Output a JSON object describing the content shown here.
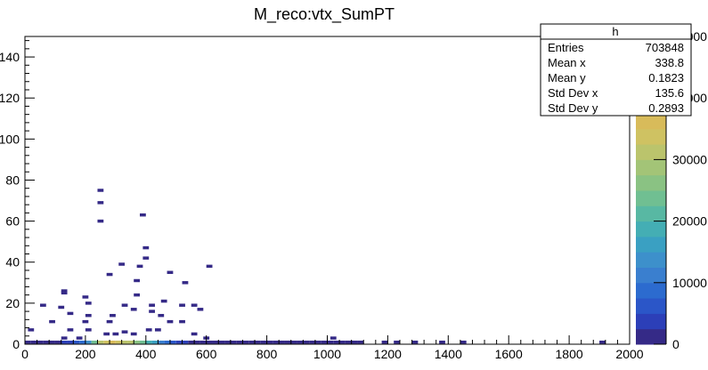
{
  "chart_data": {
    "type": "heatmap",
    "title": "M_reco:vtx_SumPT",
    "xlabel": "",
    "ylabel": "",
    "xlim": [
      0,
      2000
    ],
    "ylim": [
      0,
      150
    ],
    "x_ticks": [
      "0",
      "200",
      "400",
      "600",
      "800",
      "1000",
      "1200",
      "1400",
      "1600",
      "1800",
      "2000"
    ],
    "y_ticks": [
      "0",
      "20",
      "40",
      "60",
      "80",
      "100",
      "120",
      "140"
    ],
    "z_ticks": [
      "0",
      "10000",
      "20000",
      "30000",
      "40000",
      "50000"
    ],
    "zlim": [
      0,
      50000
    ],
    "bin_width": [
      20,
      1.5
    ],
    "cells": [
      {
        "x": 250,
        "y": 75,
        "z": 3
      },
      {
        "x": 250,
        "y": 69,
        "z": 3
      },
      {
        "x": 250,
        "y": 60,
        "z": 3
      },
      {
        "x": 390,
        "y": 63,
        "z": 3
      },
      {
        "x": 400,
        "y": 47,
        "z": 3
      },
      {
        "x": 400,
        "y": 42,
        "z": 3
      },
      {
        "x": 320,
        "y": 39,
        "z": 3
      },
      {
        "x": 380,
        "y": 38,
        "z": 3
      },
      {
        "x": 610,
        "y": 38,
        "z": 3
      },
      {
        "x": 280,
        "y": 34,
        "z": 3
      },
      {
        "x": 480,
        "y": 35,
        "z": 3
      },
      {
        "x": 530,
        "y": 30,
        "z": 3
      },
      {
        "x": 370,
        "y": 31,
        "z": 3
      },
      {
        "x": 130,
        "y": 26,
        "z": 3
      },
      {
        "x": 130,
        "y": 25,
        "z": 3
      },
      {
        "x": 370,
        "y": 24,
        "z": 3
      },
      {
        "x": 200,
        "y": 23,
        "z": 3
      },
      {
        "x": 210,
        "y": 20,
        "z": 3
      },
      {
        "x": 460,
        "y": 21,
        "z": 3
      },
      {
        "x": 520,
        "y": 19,
        "z": 3
      },
      {
        "x": 560,
        "y": 19,
        "z": 3
      },
      {
        "x": 60,
        "y": 19,
        "z": 3
      },
      {
        "x": 120,
        "y": 18,
        "z": 3
      },
      {
        "x": 330,
        "y": 19,
        "z": 3
      },
      {
        "x": 420,
        "y": 19,
        "z": 3
      },
      {
        "x": 360,
        "y": 17,
        "z": 3
      },
      {
        "x": 420,
        "y": 16,
        "z": 3
      },
      {
        "x": 580,
        "y": 17,
        "z": 3
      },
      {
        "x": 150,
        "y": 15,
        "z": 3
      },
      {
        "x": 210,
        "y": 14,
        "z": 3
      },
      {
        "x": 290,
        "y": 14,
        "z": 3
      },
      {
        "x": 450,
        "y": 14,
        "z": 3
      },
      {
        "x": 90,
        "y": 11,
        "z": 3
      },
      {
        "x": 200,
        "y": 11,
        "z": 3
      },
      {
        "x": 280,
        "y": 11,
        "z": 3
      },
      {
        "x": 480,
        "y": 11,
        "z": 3
      },
      {
        "x": 520,
        "y": 11,
        "z": 3
      },
      {
        "x": 20,
        "y": 7,
        "z": 3
      },
      {
        "x": 150,
        "y": 7,
        "z": 3
      },
      {
        "x": 210,
        "y": 7,
        "z": 3
      },
      {
        "x": 330,
        "y": 6,
        "z": 3
      },
      {
        "x": 410,
        "y": 7,
        "z": 3
      },
      {
        "x": 440,
        "y": 7,
        "z": 3
      },
      {
        "x": 270,
        "y": 5,
        "z": 3
      },
      {
        "x": 300,
        "y": 5,
        "z": 3
      },
      {
        "x": 360,
        "y": 5,
        "z": 3
      },
      {
        "x": 560,
        "y": 5,
        "z": 3
      },
      {
        "x": 600,
        "y": 3,
        "z": 3
      },
      {
        "x": 130,
        "y": 3,
        "z": 3
      },
      {
        "x": 180,
        "y": 3,
        "z": 3
      },
      {
        "x": 1020,
        "y": 3,
        "z": 3
      },
      {
        "x": 10,
        "y": 1,
        "z": 300
      },
      {
        "x": 30,
        "y": 1,
        "z": 500
      },
      {
        "x": 50,
        "y": 1,
        "z": 800
      },
      {
        "x": 70,
        "y": 1,
        "z": 1200
      },
      {
        "x": 90,
        "y": 1,
        "z": 1800
      },
      {
        "x": 110,
        "y": 1,
        "z": 2500
      },
      {
        "x": 130,
        "y": 1,
        "z": 3500
      },
      {
        "x": 150,
        "y": 1,
        "z": 5000
      },
      {
        "x": 170,
        "y": 1,
        "z": 7000
      },
      {
        "x": 190,
        "y": 1,
        "z": 10000
      },
      {
        "x": 210,
        "y": 1,
        "z": 18000
      },
      {
        "x": 230,
        "y": 1,
        "z": 30000
      },
      {
        "x": 250,
        "y": 1,
        "z": 40000
      },
      {
        "x": 270,
        "y": 1,
        "z": 45000
      },
      {
        "x": 290,
        "y": 1,
        "z": 48000
      },
      {
        "x": 310,
        "y": 1,
        "z": 46000
      },
      {
        "x": 330,
        "y": 1,
        "z": 43000
      },
      {
        "x": 350,
        "y": 1,
        "z": 40000
      },
      {
        "x": 370,
        "y": 1,
        "z": 35000
      },
      {
        "x": 390,
        "y": 1,
        "z": 30000
      },
      {
        "x": 410,
        "y": 1,
        "z": 25000
      },
      {
        "x": 430,
        "y": 1,
        "z": 20000
      },
      {
        "x": 450,
        "y": 1,
        "z": 15000
      },
      {
        "x": 470,
        "y": 1,
        "z": 11000
      },
      {
        "x": 490,
        "y": 1,
        "z": 8000
      },
      {
        "x": 510,
        "y": 1,
        "z": 5500
      },
      {
        "x": 530,
        "y": 1,
        "z": 3800
      },
      {
        "x": 550,
        "y": 1,
        "z": 2500
      },
      {
        "x": 570,
        "y": 1,
        "z": 1500
      },
      {
        "x": 590,
        "y": 1,
        "z": 900
      },
      {
        "x": 610,
        "y": 1,
        "z": 500
      },
      {
        "x": 630,
        "y": 1,
        "z": 300
      },
      {
        "x": 650,
        "y": 1,
        "z": 150
      },
      {
        "x": 670,
        "y": 1,
        "z": 100
      },
      {
        "x": 690,
        "y": 1,
        "z": 60
      },
      {
        "x": 710,
        "y": 1,
        "z": 40
      },
      {
        "x": 730,
        "y": 1,
        "z": 30
      },
      {
        "x": 750,
        "y": 1,
        "z": 20
      },
      {
        "x": 770,
        "y": 1,
        "z": 15
      },
      {
        "x": 790,
        "y": 1,
        "z": 10
      },
      {
        "x": 810,
        "y": 1,
        "z": 8
      },
      {
        "x": 830,
        "y": 1,
        "z": 6
      },
      {
        "x": 850,
        "y": 1,
        "z": 5
      },
      {
        "x": 870,
        "y": 1,
        "z": 4
      },
      {
        "x": 890,
        "y": 1,
        "z": 3
      },
      {
        "x": 910,
        "y": 1,
        "z": 3
      },
      {
        "x": 930,
        "y": 1,
        "z": 3
      },
      {
        "x": 950,
        "y": 1,
        "z": 3
      },
      {
        "x": 970,
        "y": 1,
        "z": 3
      },
      {
        "x": 990,
        "y": 1,
        "z": 3
      },
      {
        "x": 1010,
        "y": 1,
        "z": 3
      },
      {
        "x": 1030,
        "y": 1,
        "z": 3
      },
      {
        "x": 1050,
        "y": 1,
        "z": 3
      },
      {
        "x": 1070,
        "y": 1,
        "z": 3
      },
      {
        "x": 1090,
        "y": 1,
        "z": 3
      },
      {
        "x": 1110,
        "y": 1,
        "z": 3
      },
      {
        "x": 1190,
        "y": 1,
        "z": 3
      },
      {
        "x": 1230,
        "y": 1,
        "z": 3
      },
      {
        "x": 1290,
        "y": 1,
        "z": 3
      },
      {
        "x": 1380,
        "y": 1,
        "z": 3
      },
      {
        "x": 1450,
        "y": 1,
        "z": 3
      },
      {
        "x": 1910,
        "y": 1,
        "z": 3
      }
    ],
    "palette": [
      "#352a87",
      "#2c3fb8",
      "#2b56c8",
      "#2c6bcf",
      "#3a7fcf",
      "#3d90cb",
      "#3aa0c2",
      "#44aeb4",
      "#58b8a3",
      "#70bf92",
      "#8ac283",
      "#a3c477",
      "#bbc46c",
      "#cfc262",
      "#d8bb5a"
    ],
    "legend": {
      "title": "h",
      "entries": [
        {
          "label": "Entries",
          "value": "703848"
        },
        {
          "label": "Mean x",
          "value": "338.8"
        },
        {
          "label": "Mean y",
          "value": "0.1823"
        },
        {
          "label": "Std Dev x",
          "value": "135.6"
        },
        {
          "label": "Std Dev y",
          "value": "0.2893"
        }
      ]
    }
  }
}
